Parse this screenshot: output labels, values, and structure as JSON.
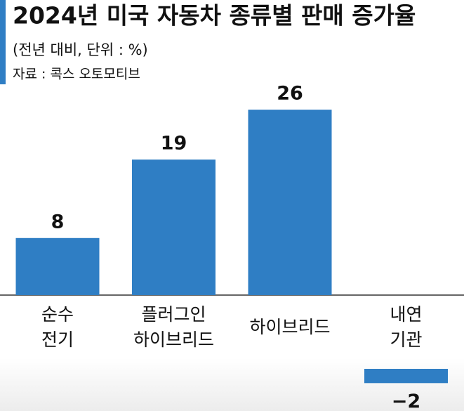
{
  "chart_data": {
    "type": "bar",
    "title": "2024년 미국 자동차 종류별 판매 증가율",
    "subtitle": "(전년 대비, 단위 : %)",
    "source": "자료 : 콕스 오토모티브",
    "categories": [
      [
        "순수",
        "전기"
      ],
      [
        "플러그인",
        "하이브리드"
      ],
      [
        "하이브리드"
      ],
      [
        "내연",
        "기관"
      ]
    ],
    "values": [
      8,
      19,
      26,
      -2
    ],
    "value_labels": [
      "8",
      "19",
      "26",
      "−2"
    ],
    "color": "#2f7ec4"
  }
}
